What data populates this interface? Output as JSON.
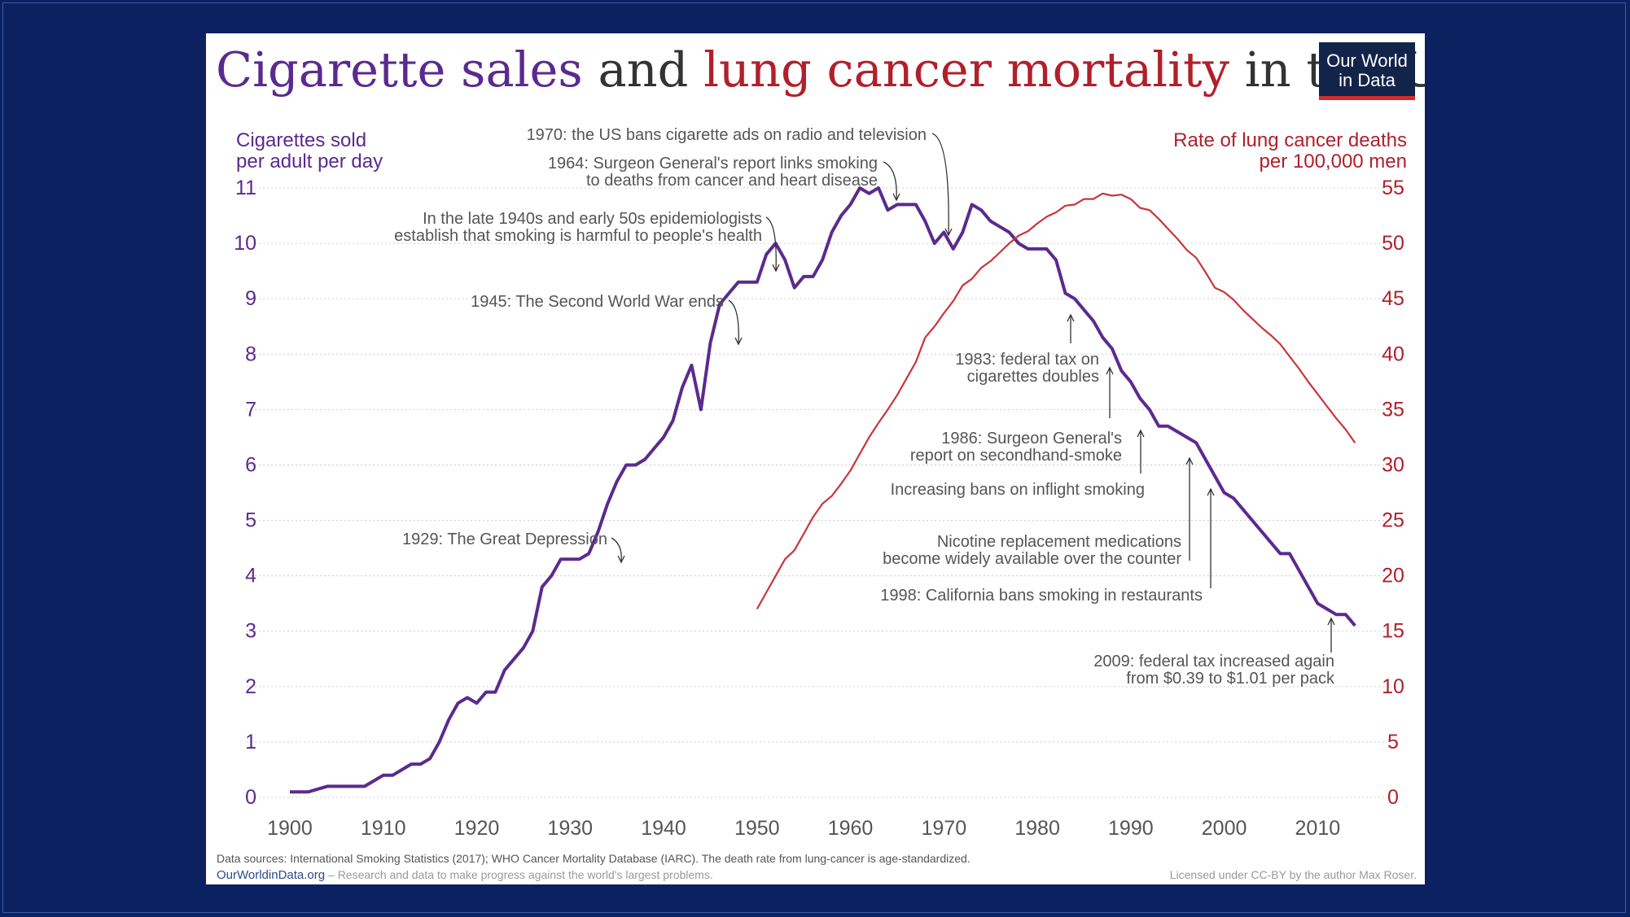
{
  "chart_data": {
    "type": "line",
    "title_parts": [
      {
        "text": "Cigarette sales",
        "color": "#5b2a8e"
      },
      {
        "text": " and ",
        "color": "#333333"
      },
      {
        "text": "lung cancer mortality",
        "color": "#b0202b"
      },
      {
        "text": " in the US",
        "color": "#333333"
      }
    ],
    "logo": {
      "line1": "Our World",
      "line2": "in Data"
    },
    "left_axis": {
      "title_line1": "Cigarettes sold",
      "title_line2": "per adult per day",
      "min": 0,
      "max": 11,
      "ticks": [
        "0",
        "1",
        "2",
        "3",
        "4",
        "5",
        "6",
        "7",
        "8",
        "9",
        "10",
        "11"
      ],
      "color": "#5b2a8e"
    },
    "right_axis": {
      "title_line1": "Rate of lung cancer deaths",
      "title_line2": "per 100,000 men",
      "min": 0,
      "max": 55,
      "ticks": [
        "0",
        "5",
        "10",
        "15",
        "20",
        "25",
        "30",
        "35",
        "40",
        "45",
        "50",
        "55"
      ],
      "color": "#b0202b"
    },
    "x_axis": {
      "min": 1900,
      "max": 2012,
      "ticks": [
        "1900",
        "1910",
        "1920",
        "1930",
        "1940",
        "1950",
        "1960",
        "1970",
        "1980",
        "1990",
        "2000",
        "2010"
      ]
    },
    "grid": "horizontal-dotted",
    "series": [
      {
        "color": "#5b2a8e",
        "axis": "left",
        "points": [
          [
            1900,
            0.1
          ],
          [
            1902,
            0.1
          ],
          [
            1903,
            0.15
          ],
          [
            1904,
            0.2
          ],
          [
            1906,
            0.2
          ],
          [
            1908,
            0.2
          ],
          [
            1909,
            0.3
          ],
          [
            1910,
            0.4
          ],
          [
            1911,
            0.4
          ],
          [
            1913,
            0.6
          ],
          [
            1914,
            0.6
          ],
          [
            1915,
            0.7
          ],
          [
            1916,
            1.0
          ],
          [
            1917,
            1.4
          ],
          [
            1918,
            1.7
          ],
          [
            1919,
            1.8
          ],
          [
            1920,
            1.7
          ],
          [
            1921,
            1.9
          ],
          [
            1922,
            1.9
          ],
          [
            1923,
            2.3
          ],
          [
            1924,
            2.5
          ],
          [
            1925,
            2.7
          ],
          [
            1926,
            3.0
          ],
          [
            1927,
            3.8
          ],
          [
            1928,
            4.0
          ],
          [
            1929,
            4.3
          ],
          [
            1930,
            4.3
          ],
          [
            1931,
            4.3
          ],
          [
            1932,
            4.4
          ],
          [
            1933,
            4.8
          ],
          [
            1934,
            5.3
          ],
          [
            1935,
            5.7
          ],
          [
            1936,
            6.0
          ],
          [
            1937,
            6.0
          ],
          [
            1938,
            6.1
          ],
          [
            1939,
            6.3
          ],
          [
            1940,
            6.5
          ],
          [
            1941,
            6.8
          ],
          [
            1942,
            7.4
          ],
          [
            1943,
            7.8
          ],
          [
            1944,
            7.0
          ],
          [
            1945,
            8.2
          ],
          [
            1946,
            8.9
          ],
          [
            1947,
            9.1
          ],
          [
            1948,
            9.3
          ],
          [
            1949,
            9.3
          ],
          [
            1950,
            9.3
          ],
          [
            1951,
            9.8
          ],
          [
            1952,
            10.0
          ],
          [
            1953,
            9.7
          ],
          [
            1954,
            9.2
          ],
          [
            1955,
            9.4
          ],
          [
            1956,
            9.4
          ],
          [
            1957,
            9.7
          ],
          [
            1958,
            10.2
          ],
          [
            1959,
            10.5
          ],
          [
            1960,
            10.7
          ],
          [
            1961,
            11.0
          ],
          [
            1962,
            10.9
          ],
          [
            1963,
            11.0
          ],
          [
            1964,
            10.6
          ],
          [
            1965,
            10.7
          ],
          [
            1966,
            10.7
          ],
          [
            1967,
            10.7
          ],
          [
            1968,
            10.4
          ],
          [
            1969,
            10.0
          ],
          [
            1970,
            10.2
          ],
          [
            1971,
            9.9
          ],
          [
            1972,
            10.2
          ],
          [
            1973,
            10.7
          ],
          [
            1974,
            10.6
          ],
          [
            1975,
            10.4
          ],
          [
            1976,
            10.3
          ],
          [
            1977,
            10.2
          ],
          [
            1978,
            10.0
          ],
          [
            1979,
            9.9
          ],
          [
            1980,
            9.9
          ],
          [
            1981,
            9.9
          ],
          [
            1982,
            9.7
          ],
          [
            1983,
            9.1
          ],
          [
            1984,
            9.0
          ],
          [
            1985,
            8.8
          ],
          [
            1986,
            8.6
          ],
          [
            1987,
            8.3
          ],
          [
            1988,
            8.1
          ],
          [
            1989,
            7.7
          ],
          [
            1990,
            7.5
          ],
          [
            1991,
            7.2
          ],
          [
            1992,
            7.0
          ],
          [
            1993,
            6.7
          ],
          [
            1994,
            6.7
          ],
          [
            1995,
            6.6
          ],
          [
            1996,
            6.5
          ],
          [
            1997,
            6.4
          ],
          [
            1998,
            6.1
          ],
          [
            1999,
            5.8
          ],
          [
            2000,
            5.5
          ],
          [
            2001,
            5.4
          ],
          [
            2002,
            5.2
          ],
          [
            2003,
            5.0
          ],
          [
            2004,
            4.8
          ],
          [
            2005,
            4.6
          ],
          [
            2006,
            4.4
          ],
          [
            2007,
            4.4
          ],
          [
            2008,
            4.1
          ],
          [
            2009,
            3.8
          ],
          [
            2010,
            3.5
          ],
          [
            2011,
            3.4
          ],
          [
            2012,
            3.3
          ],
          [
            2013,
            3.3
          ],
          [
            2014,
            3.1
          ]
        ]
      },
      {
        "color": "#c8363a",
        "axis": "right",
        "points": [
          [
            1950,
            17.0
          ],
          [
            1951,
            18.5
          ],
          [
            1952,
            20.0
          ],
          [
            1953,
            21.5
          ],
          [
            1954,
            22.3
          ],
          [
            1955,
            23.8
          ],
          [
            1956,
            25.3
          ],
          [
            1957,
            26.5
          ],
          [
            1958,
            27.2
          ],
          [
            1959,
            28.3
          ],
          [
            1960,
            29.5
          ],
          [
            1961,
            31.0
          ],
          [
            1962,
            32.5
          ],
          [
            1963,
            33.8
          ],
          [
            1964,
            35.0
          ],
          [
            1965,
            36.3
          ],
          [
            1966,
            37.8
          ],
          [
            1967,
            39.3
          ],
          [
            1968,
            41.5
          ],
          [
            1969,
            42.5
          ],
          [
            1970,
            43.7
          ],
          [
            1971,
            44.8
          ],
          [
            1972,
            46.2
          ],
          [
            1973,
            46.8
          ],
          [
            1974,
            47.8
          ],
          [
            1975,
            48.4
          ],
          [
            1976,
            49.2
          ],
          [
            1977,
            50.0
          ],
          [
            1978,
            50.7
          ],
          [
            1979,
            51.1
          ],
          [
            1980,
            51.8
          ],
          [
            1981,
            52.4
          ],
          [
            1982,
            52.8
          ],
          [
            1983,
            53.4
          ],
          [
            1984,
            53.5
          ],
          [
            1985,
            54.0
          ],
          [
            1986,
            54.0
          ],
          [
            1987,
            54.5
          ],
          [
            1988,
            54.3
          ],
          [
            1989,
            54.4
          ],
          [
            1990,
            54.0
          ],
          [
            1991,
            53.2
          ],
          [
            1992,
            53.0
          ],
          [
            1993,
            52.2
          ],
          [
            1994,
            51.3
          ],
          [
            1995,
            50.4
          ],
          [
            1996,
            49.4
          ],
          [
            1997,
            48.7
          ],
          [
            1998,
            47.4
          ],
          [
            1999,
            46.0
          ],
          [
            2000,
            45.6
          ],
          [
            2001,
            44.9
          ],
          [
            2002,
            44.0
          ],
          [
            2003,
            43.2
          ],
          [
            2004,
            42.4
          ],
          [
            2005,
            41.7
          ],
          [
            2006,
            40.9
          ],
          [
            2007,
            39.8
          ],
          [
            2008,
            38.7
          ],
          [
            2009,
            37.5
          ],
          [
            2010,
            36.4
          ],
          [
            2011,
            35.3
          ],
          [
            2012,
            34.2
          ],
          [
            2013,
            33.2
          ],
          [
            2014,
            32.0
          ]
        ]
      }
    ],
    "annotations": [
      {
        "lines": [
          "1970: the US bans cigarette ads on radio and television"
        ],
        "year": 1970,
        "value": 10.5,
        "anchor": "end"
      },
      {
        "lines": [
          "1964: Surgeon General's report links smoking",
          "to deaths from cancer and heart disease"
        ],
        "year": 1963,
        "value": 11.0,
        "anchor": "end"
      },
      {
        "lines": [
          "In the late 1940s and early 50s epidemiologists",
          "establish that smoking is harmful to people's health"
        ],
        "year": 1949,
        "value": 9.7,
        "anchor": "end"
      },
      {
        "lines": [
          "1945: The Second World War ends"
        ],
        "year": 1945,
        "value": 8.5,
        "anchor": "end"
      },
      {
        "lines": [
          "1929: The Great Depression"
        ],
        "year": 1929,
        "value": 4.5,
        "anchor": "end"
      },
      {
        "lines": [
          "1983: federal tax on",
          "cigarettes doubles"
        ],
        "year": 1983,
        "value": 9.0,
        "anchor": "end"
      },
      {
        "lines": [
          "1986: Surgeon General's",
          "report on secondhand-smoke"
        ],
        "year": 1987,
        "value": 8.0,
        "anchor": "end"
      },
      {
        "lines": [
          "Increasing bans on inflight smoking"
        ],
        "year": 1990,
        "value": 6.5,
        "anchor": "end"
      },
      {
        "lines": [
          "Nicotine replacement medications",
          "become widely available over the counter"
        ],
        "year": 1995,
        "value": 6.1,
        "anchor": "end"
      },
      {
        "lines": [
          "1998: California bans smoking in restaurants"
        ],
        "year": 1997,
        "value": 5.9,
        "anchor": "end"
      },
      {
        "lines": [
          "2009: federal tax increased again",
          "from $0.39 to $1.01 per pack"
        ],
        "year": 2009,
        "value": 3.6,
        "anchor": "end"
      }
    ],
    "footer": {
      "sources": "Data sources: International Smoking Statistics (2017); WHO Cancer Mortality Database (IARC). The death rate from lung-cancer is age-standardized.",
      "site": "OurWorldinData.org",
      "tagline": " – Research and data to make progress against the world's largest problems.",
      "license": "Licensed under CC-BY by the author Max Roser."
    }
  }
}
